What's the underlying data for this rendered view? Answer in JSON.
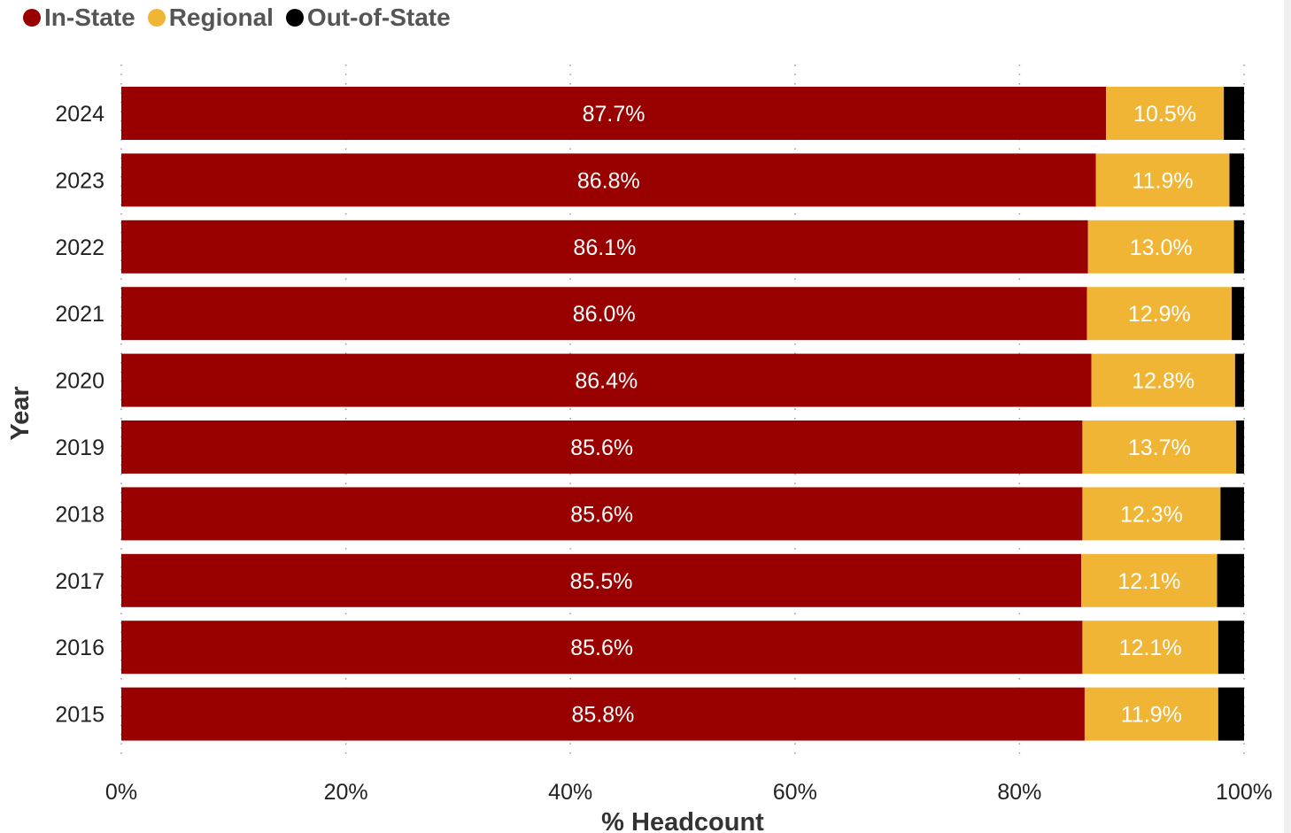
{
  "chart_data": {
    "type": "bar",
    "orientation": "horizontal",
    "stacked": true,
    "categories": [
      "2024",
      "2023",
      "2022",
      "2021",
      "2020",
      "2019",
      "2018",
      "2017",
      "2016",
      "2015"
    ],
    "series": [
      {
        "name": "In-State",
        "color": "#990000",
        "values": [
          87.7,
          86.8,
          86.1,
          86.0,
          86.4,
          85.6,
          85.6,
          85.5,
          85.6,
          85.8
        ],
        "labels": [
          "87.7%",
          "86.8%",
          "86.1%",
          "86.0%",
          "86.4%",
          "85.6%",
          "85.6%",
          "85.5%",
          "85.6%",
          "85.8%"
        ]
      },
      {
        "name": "Regional",
        "color": "#F0B535",
        "values": [
          10.5,
          11.9,
          13.0,
          12.9,
          12.8,
          13.7,
          12.3,
          12.1,
          12.1,
          11.9
        ],
        "labels": [
          "10.5%",
          "11.9%",
          "13.0%",
          "12.9%",
          "12.8%",
          "13.7%",
          "12.3%",
          "12.1%",
          "12.1%",
          "11.9%"
        ]
      },
      {
        "name": "Out-of-State",
        "color": "#000000",
        "values": [
          1.8,
          1.3,
          0.9,
          1.1,
          0.8,
          0.7,
          2.1,
          2.4,
          2.3,
          2.3
        ],
        "labels": []
      }
    ],
    "xlabel": "% Headcount",
    "ylabel": "Year",
    "xlim": [
      0,
      100
    ],
    "xticks": [
      "0%",
      "20%",
      "40%",
      "60%",
      "80%",
      "100%"
    ],
    "grid": "vertical dotted",
    "legend_position": "top-left"
  }
}
